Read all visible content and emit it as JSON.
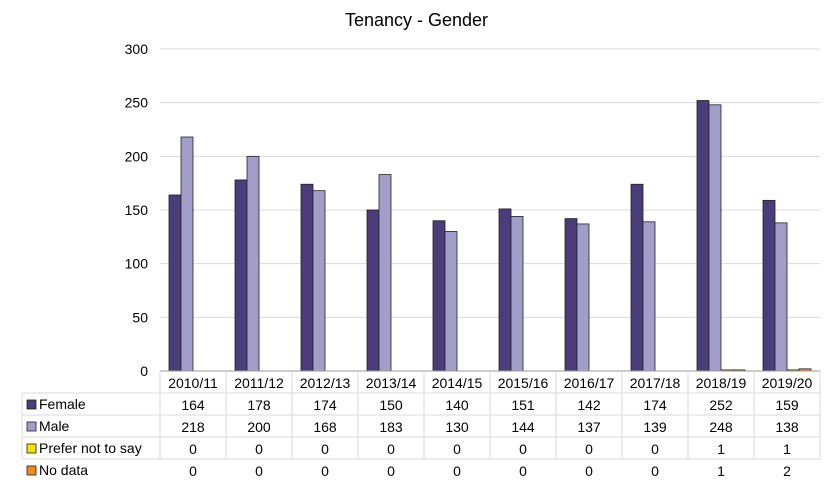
{
  "chart_data": {
    "type": "bar",
    "title": "Tenancy - Gender",
    "xlabel": "",
    "ylabel": "",
    "ylim": [
      0,
      300
    ],
    "yticks": [
      0,
      50,
      100,
      150,
      200,
      250,
      300
    ],
    "grid": true,
    "legend": "data-table",
    "categories": [
      "2010/11",
      "2011/12",
      "2012/13",
      "2013/14",
      "2014/15",
      "2015/16",
      "2016/17",
      "2017/18",
      "2018/19",
      "2019/20"
    ],
    "series": [
      {
        "name": "Female",
        "color": "#4b3c7a",
        "values": [
          164,
          178,
          174,
          150,
          140,
          151,
          142,
          174,
          252,
          159
        ]
      },
      {
        "name": "Male",
        "color": "#a19ec9",
        "values": [
          218,
          200,
          168,
          183,
          130,
          144,
          137,
          139,
          248,
          138
        ]
      },
      {
        "name": "Prefer not to say",
        "color": "#f5e400",
        "values": [
          0,
          0,
          0,
          0,
          0,
          0,
          0,
          0,
          1,
          1
        ]
      },
      {
        "name": "No data",
        "color": "#f08a1c",
        "values": [
          0,
          0,
          0,
          0,
          0,
          0,
          0,
          0,
          1,
          2
        ]
      }
    ]
  }
}
